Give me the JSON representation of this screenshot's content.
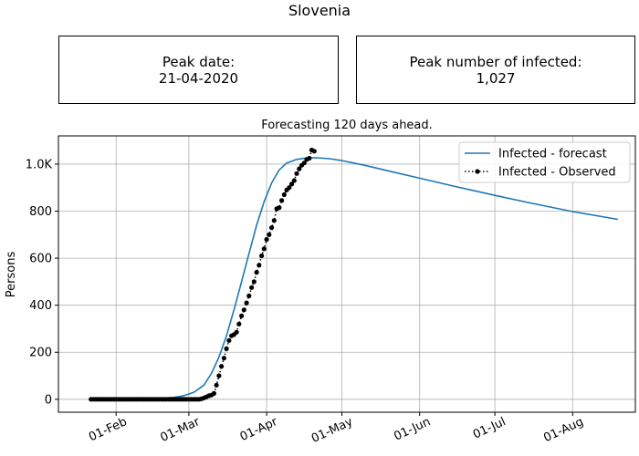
{
  "figure": {
    "title": "Slovenia",
    "peak_date": {
      "label": "Peak date:",
      "value": "21-04-2020"
    },
    "peak_number": {
      "label": "Peak number of infected:",
      "value": "1,027"
    }
  },
  "chart_data": {
    "type": "line",
    "title": "Forecasting 120 days ahead.",
    "xlabel": "",
    "ylabel": "Persons",
    "x_ticks": [
      "2020-02-01",
      "2020-03-01",
      "2020-04-01",
      "2020-05-01",
      "2020-06-01",
      "2020-07-01",
      "2020-08-01"
    ],
    "x_tick_labels": [
      "01-Feb",
      "01-Mar",
      "01-Apr",
      "01-May",
      "01-Jun",
      "01-Jul",
      "01-Aug"
    ],
    "y_ticks": [
      0,
      200,
      400,
      600,
      800,
      1000
    ],
    "y_tick_labels": [
      "0",
      "200",
      "400",
      "600",
      "800",
      "1.0K"
    ],
    "xlim": [
      "2020-01-09",
      "2020-08-26"
    ],
    "ylim": [
      -55,
      1120
    ],
    "grid": true,
    "legend_position": "top-right",
    "series": [
      {
        "name": "Infected - forecast",
        "style": "solid",
        "color": "#1f77b4",
        "points": [
          [
            "2020-01-22",
            0
          ],
          [
            "2020-02-01",
            0
          ],
          [
            "2020-02-10",
            1
          ],
          [
            "2020-02-17",
            3
          ],
          [
            "2020-02-24",
            8
          ],
          [
            "2020-02-28",
            15
          ],
          [
            "2020-03-03",
            30
          ],
          [
            "2020-03-07",
            60
          ],
          [
            "2020-03-10",
            110
          ],
          [
            "2020-03-13",
            180
          ],
          [
            "2020-03-16",
            270
          ],
          [
            "2020-03-19",
            380
          ],
          [
            "2020-03-22",
            500
          ],
          [
            "2020-03-25",
            620
          ],
          [
            "2020-03-28",
            740
          ],
          [
            "2020-03-31",
            840
          ],
          [
            "2020-04-03",
            920
          ],
          [
            "2020-04-06",
            975
          ],
          [
            "2020-04-09",
            1005
          ],
          [
            "2020-04-13",
            1020
          ],
          [
            "2020-04-17",
            1026
          ],
          [
            "2020-04-21",
            1027
          ],
          [
            "2020-04-26",
            1023
          ],
          [
            "2020-05-01",
            1015
          ],
          [
            "2020-05-10",
            995
          ],
          [
            "2020-05-20",
            970
          ],
          [
            "2020-06-01",
            940
          ],
          [
            "2020-06-15",
            905
          ],
          [
            "2020-07-01",
            867
          ],
          [
            "2020-07-15",
            835
          ],
          [
            "2020-08-01",
            798
          ],
          [
            "2020-08-19",
            765
          ]
        ]
      },
      {
        "name": "Infected - Observed",
        "style": "dotted-markers",
        "color": "#000000",
        "start": "2020-01-22",
        "values": [
          0,
          0,
          0,
          0,
          0,
          0,
          0,
          0,
          0,
          0,
          0,
          0,
          0,
          0,
          0,
          0,
          0,
          0,
          0,
          0,
          0,
          0,
          0,
          0,
          0,
          0,
          0,
          0,
          0,
          0,
          0,
          0,
          0,
          0,
          0,
          0,
          0,
          0,
          0,
          0,
          0,
          0,
          0,
          0,
          2,
          6,
          10,
          15,
          18,
          25,
          60,
          100,
          140,
          175,
          215,
          250,
          270,
          275,
          285,
          320,
          355,
          380,
          410,
          440,
          475,
          500,
          540,
          570,
          610,
          640,
          680,
          700,
          730,
          760,
          810,
          815,
          845,
          870,
          890,
          900,
          915,
          930,
          960,
          980,
          995,
          1005,
          1020,
          1025,
          1060,
          1055
        ]
      }
    ]
  }
}
